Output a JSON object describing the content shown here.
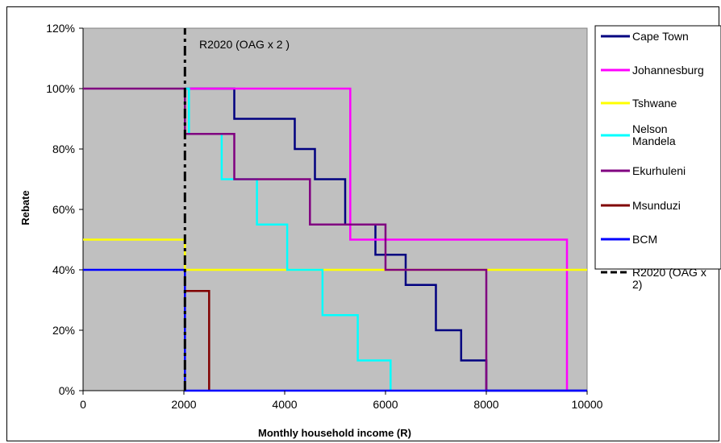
{
  "chart_data": {
    "type": "line",
    "xlabel": "Monthly household income (R)",
    "ylabel": "Rebate",
    "xlim": [
      0,
      10000
    ],
    "ylim": [
      0,
      120
    ],
    "x_ticks": [
      "0",
      "2000",
      "4000",
      "6000",
      "8000",
      "10000"
    ],
    "y_ticks": [
      "0%",
      "20%",
      "40%",
      "60%",
      "80%",
      "100%",
      "120%"
    ],
    "background": "#c0c0c0",
    "annotation": "R2020 (OAG x 2 )",
    "legend_position": "right",
    "series": [
      {
        "name": "Cape Town",
        "color": "#000080",
        "dashed": false,
        "x": [
          2020,
          3000,
          3000,
          4200,
          4200,
          4600,
          4600,
          5200,
          5200,
          5800,
          5800,
          6400,
          6400,
          7000,
          7000,
          7500,
          7500,
          8000,
          8000,
          10000
        ],
        "y": [
          100,
          100,
          90,
          90,
          80,
          80,
          70,
          70,
          55,
          55,
          45,
          45,
          35,
          35,
          20,
          20,
          10,
          10,
          0,
          0
        ]
      },
      {
        "name": "Johannesburg",
        "color": "#ff00ff",
        "dashed": false,
        "x": [
          2020,
          5300,
          5300,
          9600,
          9600
        ],
        "y": [
          100,
          100,
          50,
          50,
          0
        ]
      },
      {
        "name": "Tshwane",
        "color": "#ffff00",
        "dashed": false,
        "x": [
          0,
          2020,
          2020,
          10000
        ],
        "y": [
          50,
          50,
          40,
          40
        ]
      },
      {
        "name": "Nelson Mandela",
        "color": "#00ffff",
        "dashed": false,
        "x": [
          2020,
          2100,
          2100,
          2750,
          2750,
          3450,
          3450,
          4050,
          4050,
          4750,
          4750,
          5450,
          5450,
          6100,
          6100
        ],
        "y": [
          100,
          100,
          85,
          85,
          70,
          70,
          55,
          55,
          40,
          40,
          25,
          25,
          10,
          10,
          0
        ]
      },
      {
        "name": "Ekurhuleni",
        "color": "#800080",
        "dashed": false,
        "x": [
          0,
          2020,
          2020,
          3000,
          3000,
          4500,
          4500,
          6000,
          6000,
          8000,
          8000
        ],
        "y": [
          100,
          100,
          85,
          85,
          70,
          70,
          55,
          55,
          40,
          40,
          0
        ]
      },
      {
        "name": "Msunduzi",
        "color": "#800000",
        "dashed": false,
        "x": [
          2020,
          2500,
          2500
        ],
        "y": [
          33,
          33,
          0
        ]
      },
      {
        "name": "BCM",
        "color": "#0000ff",
        "dashed": false,
        "x": [
          0,
          2020,
          2020,
          10000
        ],
        "y": [
          40,
          40,
          0,
          0
        ]
      },
      {
        "name": "R2020 (OAG x 2)",
        "color": "#000000",
        "dashed": true,
        "x": [
          2020,
          2020
        ],
        "y": [
          0,
          120
        ]
      }
    ]
  }
}
